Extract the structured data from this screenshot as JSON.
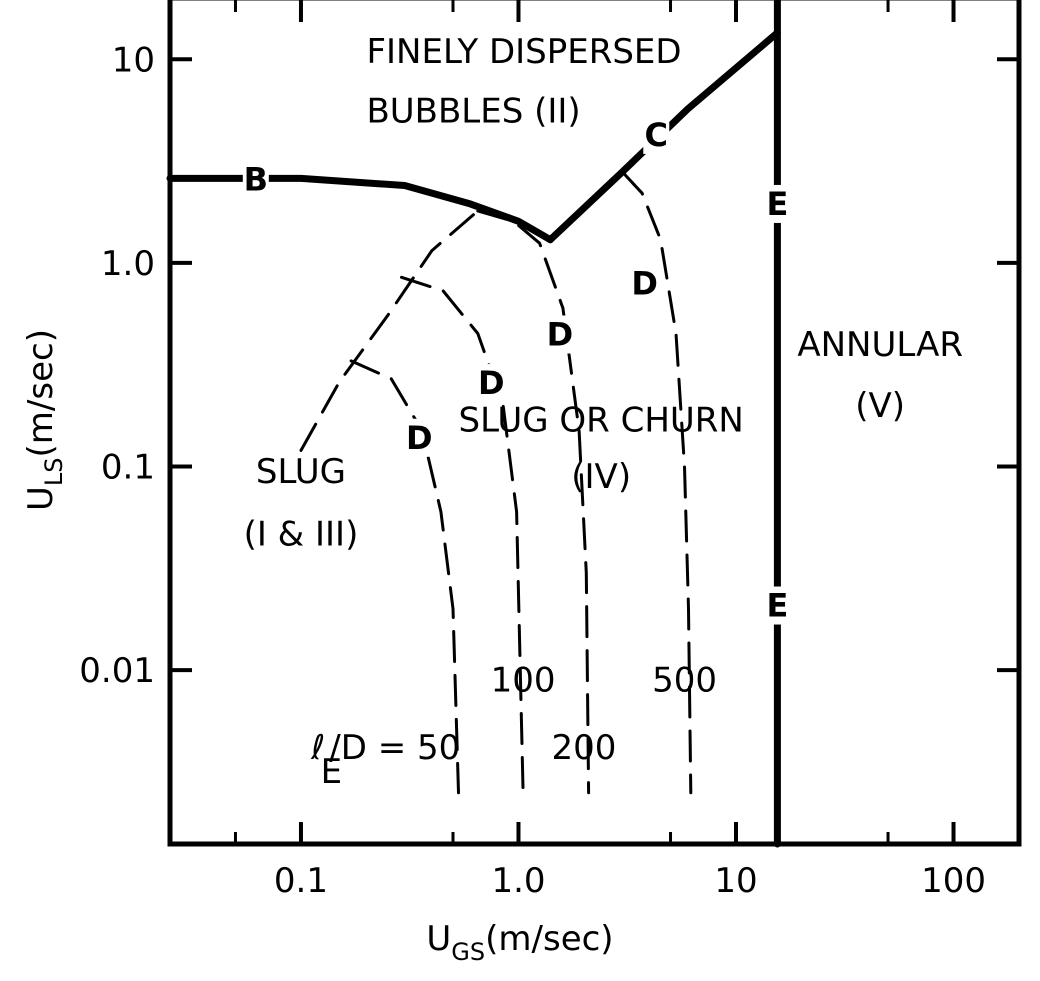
{
  "chart_data": {
    "type": "line",
    "title": "",
    "xlabel": "U",
    "xlabel_sub": "GS",
    "xlabel_unit": "(m/sec)",
    "ylabel": "U",
    "ylabel_sub": "LS",
    "ylabel_unit": "(m/sec)",
    "x_scale": "log",
    "y_scale": "log",
    "xlim": [
      0.025,
      200
    ],
    "ylim": [
      0.0014,
      20
    ],
    "x_ticks": [
      {
        "value": 0.1,
        "label": "0.1"
      },
      {
        "value": 1,
        "label": "1.0"
      },
      {
        "value": 10,
        "label": "10"
      },
      {
        "value": 100,
        "label": "100"
      }
    ],
    "y_ticks": [
      {
        "value": 0.01,
        "label": "0.01"
      },
      {
        "value": 0.1,
        "label": "0.1"
      },
      {
        "value": 1,
        "label": "1.0"
      },
      {
        "value": 10,
        "label": "10"
      }
    ],
    "grid": false,
    "boundaries": [
      {
        "label": "B",
        "style": "solid-thick",
        "points": [
          [
            0.025,
            2.6
          ],
          [
            0.1,
            2.6
          ],
          [
            0.3,
            2.4
          ],
          [
            0.6,
            1.95
          ],
          [
            1.0,
            1.6
          ],
          [
            1.4,
            1.3
          ]
        ]
      },
      {
        "label": "C",
        "style": "solid-thick",
        "points": [
          [
            1.4,
            1.3
          ],
          [
            3.0,
            2.8
          ],
          [
            6.0,
            5.7
          ],
          [
            15.5,
            13.5
          ]
        ]
      },
      {
        "label": "E",
        "style": "solid-thick",
        "points": [
          [
            15.5,
            0.0014
          ],
          [
            15.5,
            20
          ]
        ]
      },
      {
        "label": "",
        "style": "dashed",
        "points": [
          [
            0.1,
            0.12
          ],
          [
            0.15,
            0.26
          ],
          [
            0.25,
            0.55
          ],
          [
            0.4,
            1.15
          ],
          [
            0.65,
            1.8
          ]
        ]
      },
      {
        "label": "D",
        "style": "dashed",
        "points": [
          [
            0.17,
            0.33
          ],
          [
            0.26,
            0.27
          ],
          [
            0.36,
            0.15
          ],
          [
            0.44,
            0.06
          ],
          [
            0.5,
            0.02
          ],
          [
            0.53,
            0.0025
          ]
        ]
      },
      {
        "label": "D",
        "style": "dashed",
        "points": [
          [
            0.29,
            0.85
          ],
          [
            0.45,
            0.73
          ],
          [
            0.65,
            0.45
          ],
          [
            0.85,
            0.2
          ],
          [
            0.98,
            0.06
          ],
          [
            1.05,
            0.0025
          ]
        ]
      },
      {
        "label": "D",
        "style": "dashed",
        "points": [
          [
            0.65,
            1.8
          ],
          [
            0.95,
            1.6
          ],
          [
            1.25,
            1.25
          ],
          [
            1.6,
            0.6
          ],
          [
            1.9,
            0.15
          ],
          [
            2.05,
            0.03
          ],
          [
            2.1,
            0.0025
          ]
        ]
      },
      {
        "label": "D",
        "style": "dashed",
        "points": [
          [
            3.0,
            2.8
          ],
          [
            3.7,
            2.2
          ],
          [
            4.5,
            1.3
          ],
          [
            5.3,
            0.45
          ],
          [
            5.8,
            0.1
          ],
          [
            6.05,
            0.02
          ],
          [
            6.2,
            0.0025
          ]
        ]
      }
    ],
    "annotations": [
      {
        "text": "FINELY DISPERSED",
        "x": 0.2,
        "y": 11
      },
      {
        "text": "BUBBLES (II)",
        "x": 0.2,
        "y": 5.6
      },
      {
        "text": "SLUG",
        "x": 0.1,
        "y": 0.095
      },
      {
        "text": "(I & III)",
        "x": 0.1,
        "y": 0.047
      },
      {
        "text": "SLUG OR CHURN",
        "x": 2.4,
        "y": 0.17
      },
      {
        "text": "(IV)",
        "x": 2.4,
        "y": 0.09
      },
      {
        "text": "ANNULAR",
        "x": 46,
        "y": 0.4
      },
      {
        "text": "(V)",
        "x": 46,
        "y": 0.2
      },
      {
        "text": "B",
        "x": 0.062,
        "y": 2.6
      },
      {
        "text": "C",
        "x": 4.3,
        "y": 4.3
      },
      {
        "text": "E",
        "x": 15.5,
        "y": 1.97
      },
      {
        "text": "E",
        "x": 15.5,
        "y": 0.021
      },
      {
        "text": "D",
        "x": 3.8,
        "y": 0.8
      },
      {
        "text": "D",
        "x": 1.55,
        "y": 0.45
      },
      {
        "text": "D",
        "x": 0.75,
        "y": 0.26
      },
      {
        "text": "D",
        "x": 0.35,
        "y": 0.14
      },
      {
        "text": "100",
        "x": 1.05,
        "y": 0.009
      },
      {
        "text": "200",
        "x": 2.0,
        "y": 0.0042
      },
      {
        "text": "500",
        "x": 5.8,
        "y": 0.009
      },
      {
        "text": "ℓ",
        "x": 0.12,
        "y": 0.0042
      },
      {
        "text": "E",
        "x": 0.138,
        "y": 0.0032
      },
      {
        "text": "/D = 50",
        "x": 0.27,
        "y": 0.0042
      }
    ]
  }
}
